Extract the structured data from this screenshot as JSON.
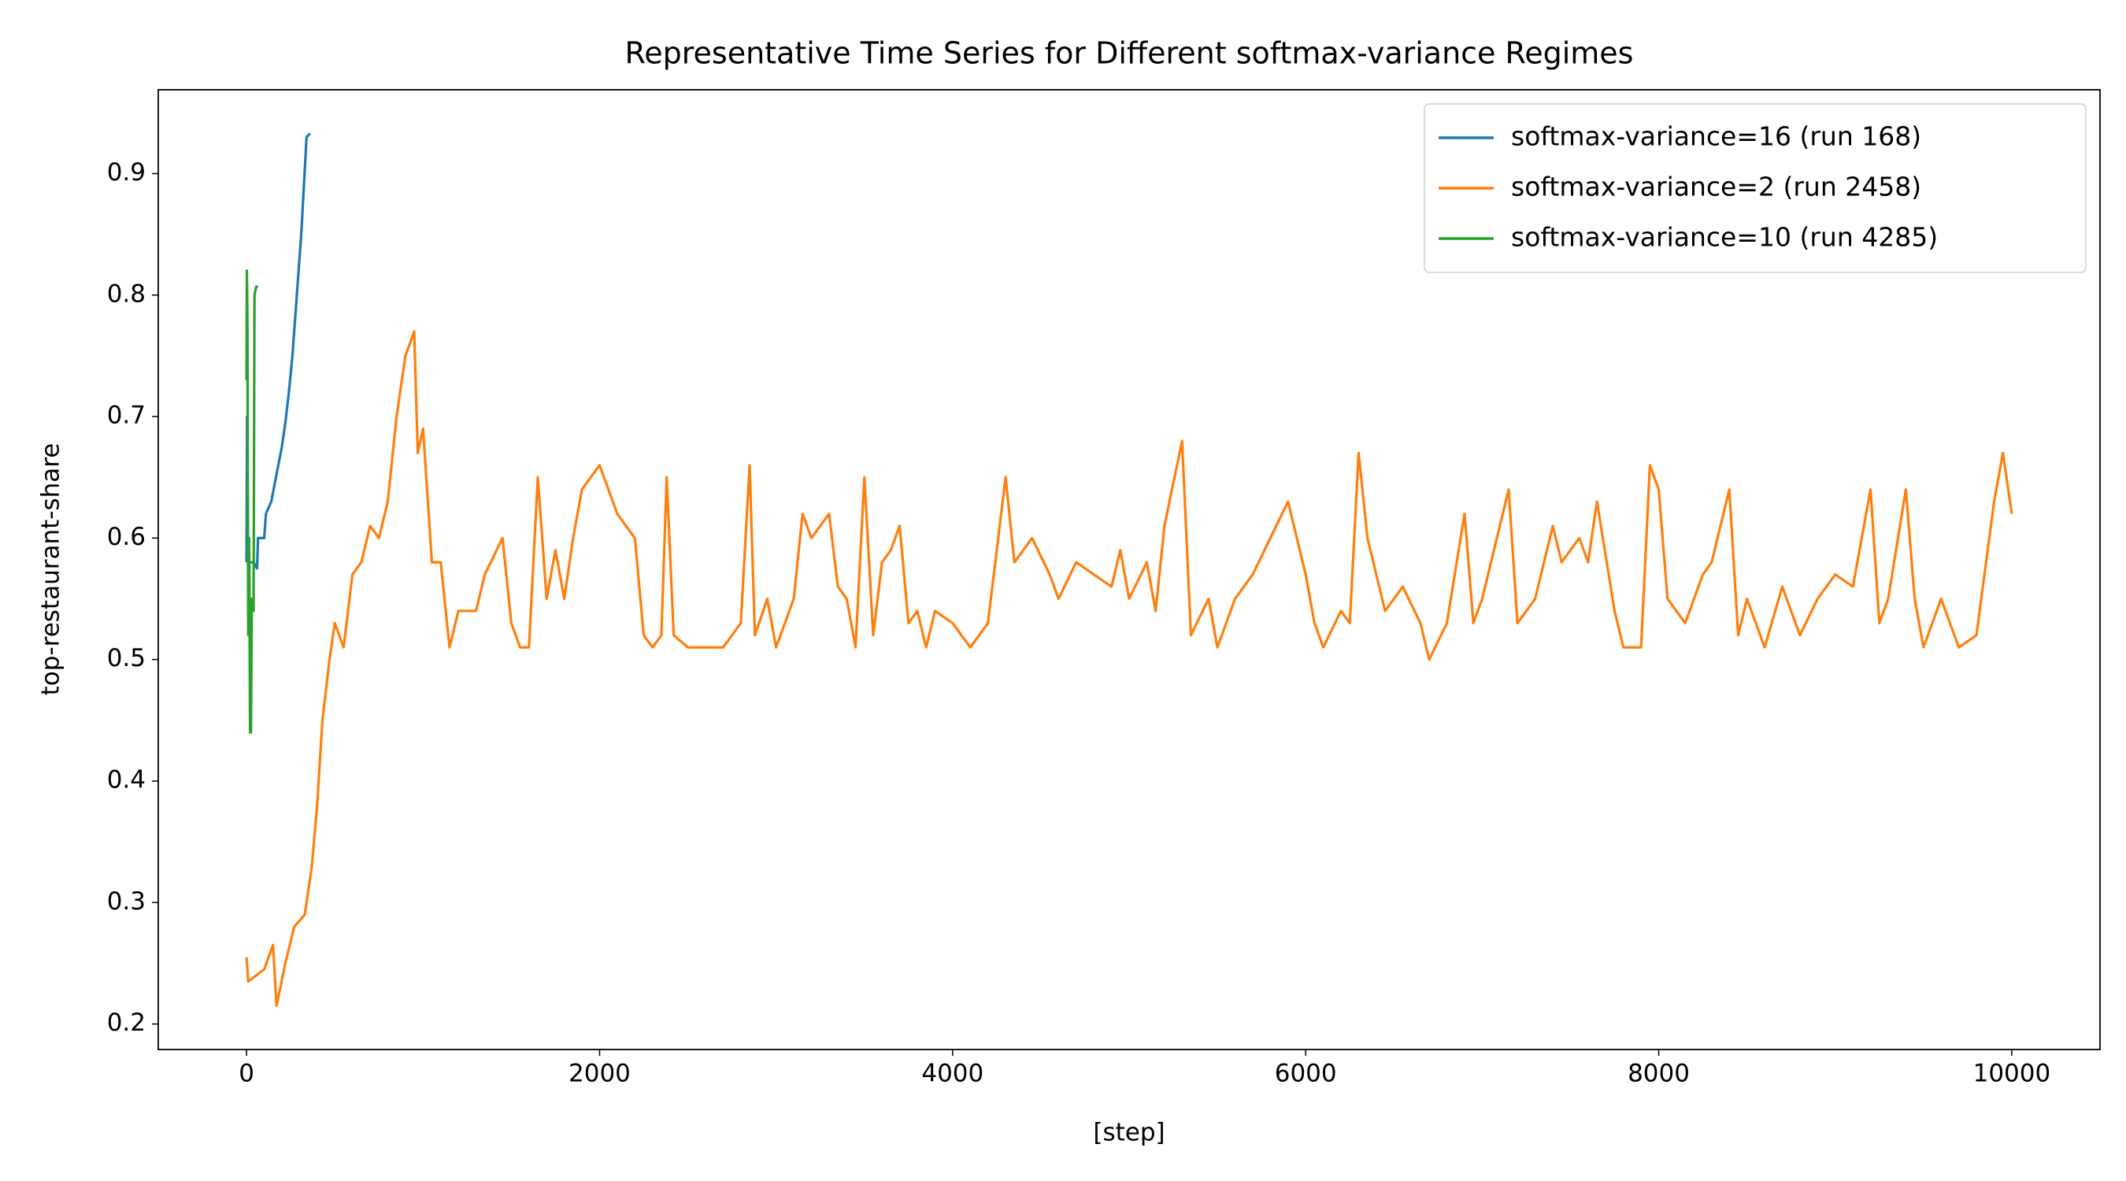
{
  "chart_data": {
    "type": "line",
    "title": "Representative Time Series for Different softmax-variance Regimes",
    "xlabel": "[step]",
    "ylabel": "top-restaurant-share",
    "xlim": [
      -500,
      10500
    ],
    "ylim": [
      0.179,
      0.969
    ],
    "xticks": [
      0,
      2000,
      4000,
      6000,
      8000,
      10000
    ],
    "yticks": [
      0.2,
      0.3,
      0.4,
      0.5,
      0.6,
      0.7,
      0.8,
      0.9
    ],
    "grid": false,
    "legend": "upper right",
    "series": [
      {
        "name": "softmax-variance=16 (run 168)",
        "color": "#1f77b4",
        "x": [
          0,
          3,
          8,
          15,
          40,
          60,
          65,
          100,
          110,
          140,
          160,
          180,
          200,
          220,
          240,
          260,
          280,
          310,
          340,
          360
        ],
        "values": [
          0.58,
          0.7,
          0.6,
          0.58,
          0.58,
          0.575,
          0.6,
          0.6,
          0.62,
          0.63,
          0.645,
          0.66,
          0.675,
          0.695,
          0.72,
          0.75,
          0.79,
          0.85,
          0.93,
          0.933
        ]
      },
      {
        "name": "softmax-variance=2 (run 2458)",
        "color": "#ff7f0e",
        "x": [
          0,
          10,
          100,
          150,
          170,
          220,
          270,
          330,
          370,
          400,
          430,
          470,
          500,
          550,
          600,
          650,
          700,
          750,
          800,
          850,
          900,
          950,
          970,
          1000,
          1050,
          1100,
          1150,
          1200,
          1300,
          1350,
          1450,
          1500,
          1550,
          1600,
          1650,
          1700,
          1750,
          1800,
          1850,
          1900,
          2000,
          2100,
          2200,
          2250,
          2300,
          2350,
          2380,
          2420,
          2500,
          2600,
          2700,
          2800,
          2850,
          2880,
          2950,
          3000,
          3050,
          3100,
          3150,
          3200,
          3300,
          3350,
          3400,
          3450,
          3500,
          3550,
          3600,
          3650,
          3700,
          3750,
          3800,
          3850,
          3900,
          4000,
          4100,
          4200,
          4300,
          4350,
          4450,
          4550,
          4600,
          4700,
          4800,
          4900,
          4950,
          5000,
          5100,
          5150,
          5200,
          5300,
          5350,
          5450,
          5500,
          5600,
          5700,
          5800,
          5900,
          6000,
          6050,
          6100,
          6200,
          6250,
          6300,
          6350,
          6450,
          6550,
          6650,
          6700,
          6800,
          6900,
          6950,
          7000,
          7100,
          7150,
          7200,
          7300,
          7400,
          7450,
          7550,
          7600,
          7650,
          7750,
          7800,
          7900,
          7950,
          8000,
          8050,
          8150,
          8250,
          8300,
          8400,
          8450,
          8500,
          8600,
          8700,
          8800,
          8900,
          9000,
          9100,
          9200,
          9250,
          9300,
          9400,
          9450,
          9500,
          9600,
          9700,
          9800,
          9900,
          9950,
          10000
        ],
        "values": [
          0.255,
          0.235,
          0.245,
          0.265,
          0.215,
          0.25,
          0.28,
          0.29,
          0.33,
          0.38,
          0.45,
          0.5,
          0.53,
          0.51,
          0.57,
          0.58,
          0.61,
          0.6,
          0.63,
          0.7,
          0.75,
          0.77,
          0.67,
          0.69,
          0.58,
          0.58,
          0.51,
          0.54,
          0.54,
          0.57,
          0.6,
          0.53,
          0.51,
          0.51,
          0.65,
          0.55,
          0.59,
          0.55,
          0.6,
          0.64,
          0.66,
          0.62,
          0.6,
          0.52,
          0.51,
          0.52,
          0.65,
          0.52,
          0.51,
          0.51,
          0.51,
          0.53,
          0.66,
          0.52,
          0.55,
          0.51,
          0.53,
          0.55,
          0.62,
          0.6,
          0.62,
          0.56,
          0.55,
          0.51,
          0.65,
          0.52,
          0.58,
          0.59,
          0.61,
          0.53,
          0.54,
          0.51,
          0.54,
          0.53,
          0.51,
          0.53,
          0.65,
          0.58,
          0.6,
          0.57,
          0.55,
          0.58,
          0.57,
          0.56,
          0.59,
          0.55,
          0.58,
          0.54,
          0.61,
          0.68,
          0.52,
          0.55,
          0.51,
          0.55,
          0.57,
          0.6,
          0.63,
          0.57,
          0.53,
          0.51,
          0.54,
          0.53,
          0.67,
          0.6,
          0.54,
          0.56,
          0.53,
          0.5,
          0.53,
          0.62,
          0.53,
          0.55,
          0.61,
          0.64,
          0.53,
          0.55,
          0.61,
          0.58,
          0.6,
          0.58,
          0.63,
          0.54,
          0.51,
          0.51,
          0.66,
          0.64,
          0.55,
          0.53,
          0.57,
          0.58,
          0.64,
          0.52,
          0.55,
          0.51,
          0.56,
          0.52,
          0.55,
          0.57,
          0.56,
          0.64,
          0.53,
          0.55,
          0.64,
          0.55,
          0.51,
          0.55,
          0.51,
          0.52,
          0.63,
          0.67,
          0.62
        ]
      },
      {
        "name": "softmax-variance=10 (run 4285)",
        "color": "#2ca02c",
        "x": [
          0,
          2,
          5,
          8,
          10,
          15,
          20,
          25,
          30,
          40,
          45,
          55,
          65
        ],
        "values": [
          0.73,
          0.82,
          0.78,
          0.6,
          0.52,
          0.6,
          0.44,
          0.44,
          0.55,
          0.54,
          0.8,
          0.807,
          0.807
        ]
      }
    ]
  }
}
